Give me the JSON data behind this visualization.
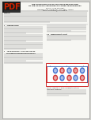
{
  "pdf_bg": "#1a1a1a",
  "pdf_text_color": "#cc2200",
  "paper_bg": "#f7f7f3",
  "title_line1": "THE DISSIPATION FACTOR AND THE INTERPRETATION",
  "title_line2": "OF THE DIELECTRIC RESPONSE OF POWER TRANSFORMERS",
  "authors": "M. KOCH   and M. DARVENIZA",
  "affiliation1": "Chemrevie Energy - Chemetillerd 1, 43421 Kletzer, Australia",
  "affiliation2": "Contact: martin.chech@eartchallenet.au",
  "line_color": "#888888",
  "text_color": "#333333",
  "section1": "1    INTRODUCTION",
  "section2": "2.0   Measurement Circuit",
  "section3": "3    THE DISSIPATION - LOSS FUNCTION OR",
  "section3b": "     THE NEGATIVE DISSIPATION FACTOR DF",
  "fig_caption1": "Figure 1: Capacitances and measurement circuit for a",
  "fig_caption2": "two winding transformer.",
  "fig_sub1": "The abbreviations of the capacitances are: C₁₂",
  "fig_sub2": "800 to 0 k winding; C₁₃ - 800 circuit; C₂ - 3,8 m watt",
  "fig_sub3": "C₁ - all HV Methods in fold and C₂ - at LV",
  "fig_sub4": "Winding to rank: it is better a series in the complete",
  "blue1": "#2255aa",
  "blue2": "#3366cc",
  "red1": "#cc2222",
  "red2": "#dd4444",
  "fig_border": "#cc2222"
}
